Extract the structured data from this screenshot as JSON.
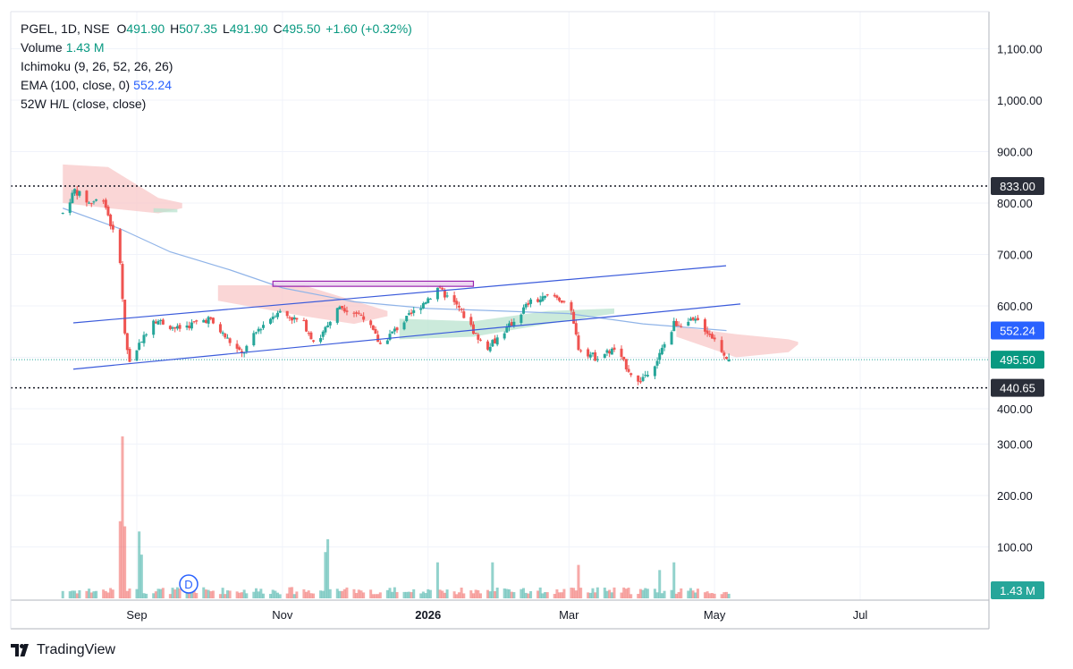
{
  "legend": {
    "symbol": "PGEL, 1D, NSE",
    "open_label": "O",
    "open": "491.90",
    "high_label": "H",
    "high": "507.35",
    "low_label": "L",
    "low": "491.90",
    "close_label": "C",
    "close": "495.50",
    "change": "+1.60 (+0.32%)",
    "volume_label": "Volume",
    "volume": "1.43 M",
    "ichimoku": "Ichimoku (9, 26, 52, 26, 26)",
    "ema_label": "EMA (100, close, 0)",
    "ema_value": "552.24",
    "hl52": "52W H/L (close, close)"
  },
  "brand": {
    "name": "TradingView",
    "icon": "tradingview-logo-icon"
  },
  "marker": {
    "letter": "D",
    "icon": "dividend-marker-icon"
  },
  "colors": {
    "up": "#26a69a",
    "down": "#ef5350",
    "ema": "#2962ff",
    "cloud_bear": "#f8c8c8",
    "cloud_bull": "#b9e3cf",
    "channel": "#3b5bdb",
    "zone": "#9c27b0"
  },
  "chart_data": {
    "type": "candlestick",
    "symbol": "PGEL",
    "interval": "1D",
    "exchange": "NSE",
    "y_axis_ticks": [
      "1,100.00",
      "1,000.00",
      "900.00",
      "800.00",
      "700.00",
      "600.00",
      "400.00",
      "300.00",
      "200.00",
      "100.00"
    ],
    "x_axis_ticks": [
      {
        "label": "Sep",
        "date": "2025-09-01"
      },
      {
        "label": "Nov",
        "date": "2025-11-01"
      },
      {
        "label": "2026",
        "date": "2026-01-01"
      },
      {
        "label": "Mar",
        "date": "2026-03-01"
      },
      {
        "label": "May",
        "date": "2026-05-01"
      },
      {
        "label": "Jul",
        "date": "2026-07-01"
      }
    ],
    "price_labels": [
      {
        "value": "833.00",
        "price": 833,
        "style": "dark"
      },
      {
        "value": "552.24",
        "price": 552.24,
        "style": "ema"
      },
      {
        "value": "495.50",
        "price": 495.5,
        "style": "last"
      },
      {
        "value": "440.65",
        "price": 440.65,
        "style": "dark"
      }
    ],
    "volume_label": "1.43 M",
    "hlines": [
      {
        "name": "52w-high",
        "price": 833
      },
      {
        "name": "52w-low",
        "price": 440.65
      },
      {
        "name": "last-price",
        "price": 495.5
      }
    ],
    "channel_lines": [
      {
        "name": "channel-upper",
        "from": {
          "date": "2025-08-25",
          "price": 567
        },
        "to": {
          "date": "2026-05-01",
          "price": 678
        }
      },
      {
        "name": "channel-lower",
        "from": {
          "date": "2025-08-25",
          "price": 477
        },
        "to": {
          "date": "2026-05-01",
          "price": 588
        }
      }
    ],
    "zone": {
      "from": {
        "date": "2025-10-28",
        "price": 648
      },
      "to": {
        "date": "2026-01-20",
        "price": 638
      }
    },
    "ema_line": [
      {
        "date": "2025-08-01",
        "price": 790
      },
      {
        "date": "2025-08-25",
        "price": 750
      },
      {
        "date": "2025-09-15",
        "price": 705
      },
      {
        "date": "2025-10-10",
        "price": 670
      },
      {
        "date": "2025-11-01",
        "price": 635
      },
      {
        "date": "2025-12-01",
        "price": 608
      },
      {
        "date": "2026-01-01",
        "price": 595
      },
      {
        "date": "2026-02-01",
        "price": 590
      },
      {
        "date": "2026-03-01",
        "price": 585
      },
      {
        "date": "2026-04-01",
        "price": 565
      },
      {
        "date": "2026-05-06",
        "price": 552
      }
    ],
    "cloud_bear": [
      {
        "date": "2025-08-01",
        "upper": 875,
        "lower": 800
      },
      {
        "date": "2025-08-20",
        "upper": 870,
        "lower": 790
      },
      {
        "date": "2025-09-10",
        "upper": 810,
        "lower": 780
      },
      {
        "date": "2025-09-20",
        "upper": 800,
        "lower": 790
      }
    ],
    "cloud_bear2": [
      {
        "date": "2025-10-05",
        "upper": 640,
        "lower": 610
      },
      {
        "date": "2025-11-10",
        "upper": 640,
        "lower": 580
      },
      {
        "date": "2025-12-01",
        "upper": 610,
        "lower": 565
      },
      {
        "date": "2025-12-15",
        "upper": 590,
        "lower": 580
      }
    ],
    "cloud_bull": [
      {
        "date": "2025-12-20",
        "upper": 575,
        "lower": 535
      },
      {
        "date": "2026-01-20",
        "upper": 570,
        "lower": 540
      },
      {
        "date": "2026-02-20",
        "upper": 590,
        "lower": 565
      },
      {
        "date": "2026-03-20",
        "upper": 595,
        "lower": 585
      }
    ],
    "cloud_bear3": [
      {
        "date": "2026-04-15",
        "upper": 560,
        "lower": 540
      },
      {
        "date": "2026-05-10",
        "upper": 545,
        "lower": 500
      },
      {
        "date": "2026-06-01",
        "upper": 535,
        "lower": 510
      },
      {
        "date": "2026-06-05",
        "upper": 530,
        "lower": 525
      }
    ],
    "cloud_bull2": [
      {
        "date": "2025-09-08",
        "upper": 790,
        "lower": 782
      },
      {
        "date": "2025-09-18",
        "upper": 788,
        "lower": 782
      }
    ],
    "price_path": [
      {
        "date": "2025-08-01",
        "price": 780
      },
      {
        "date": "2025-08-06",
        "price": 825
      },
      {
        "date": "2025-08-12",
        "price": 800
      },
      {
        "date": "2025-08-18",
        "price": 810
      },
      {
        "date": "2025-08-21",
        "price": 760
      },
      {
        "date": "2025-08-25",
        "price": 690
      },
      {
        "date": "2025-08-27",
        "price": 540
      },
      {
        "date": "2025-08-29",
        "price": 490
      },
      {
        "date": "2025-09-03",
        "price": 535
      },
      {
        "date": "2025-09-08",
        "price": 575
      },
      {
        "date": "2025-09-18",
        "price": 555
      },
      {
        "date": "2025-10-01",
        "price": 575
      },
      {
        "date": "2025-10-15",
        "price": 505
      },
      {
        "date": "2025-10-22",
        "price": 555
      },
      {
        "date": "2025-10-30",
        "price": 590
      },
      {
        "date": "2025-11-10",
        "price": 565
      },
      {
        "date": "2025-11-15",
        "price": 525
      },
      {
        "date": "2025-11-25",
        "price": 600
      },
      {
        "date": "2025-12-05",
        "price": 580
      },
      {
        "date": "2025-12-12",
        "price": 525
      },
      {
        "date": "2025-12-22",
        "price": 570
      },
      {
        "date": "2026-01-01",
        "price": 615
      },
      {
        "date": "2026-01-05",
        "price": 635
      },
      {
        "date": "2026-01-14",
        "price": 595
      },
      {
        "date": "2026-01-25",
        "price": 515
      },
      {
        "date": "2026-02-04",
        "price": 560
      },
      {
        "date": "2026-02-12",
        "price": 605
      },
      {
        "date": "2026-02-22",
        "price": 620
      },
      {
        "date": "2026-03-01",
        "price": 605
      },
      {
        "date": "2026-03-05",
        "price": 520
      },
      {
        "date": "2026-03-12",
        "price": 500
      },
      {
        "date": "2026-03-20",
        "price": 515
      },
      {
        "date": "2026-03-30",
        "price": 450
      },
      {
        "date": "2026-04-07",
        "price": 495
      },
      {
        "date": "2026-04-14",
        "price": 565
      },
      {
        "date": "2026-04-24",
        "price": 570
      },
      {
        "date": "2026-04-30",
        "price": 540
      },
      {
        "date": "2026-05-07",
        "price": 495.5
      }
    ],
    "volume_spikes": [
      {
        "date": "2025-08-25",
        "volume": 150
      },
      {
        "date": "2025-08-26",
        "volume": 315
      },
      {
        "date": "2025-08-27",
        "volume": 140
      },
      {
        "date": "2025-08-30",
        "volume": 75
      },
      {
        "date": "2025-09-02",
        "volume": 130
      },
      {
        "date": "2025-09-03",
        "volume": 85
      },
      {
        "date": "2025-10-18",
        "volume": 135
      },
      {
        "date": "2025-11-20",
        "volume": 115
      },
      {
        "date": "2025-11-19",
        "volume": 90
      },
      {
        "date": "2026-01-05",
        "volume": 70
      },
      {
        "date": "2026-01-28",
        "volume": 70
      },
      {
        "date": "2026-02-21",
        "volume": 68
      },
      {
        "date": "2026-03-05",
        "volume": 65
      },
      {
        "date": "2026-04-14",
        "volume": 70
      },
      {
        "date": "2026-04-08",
        "volume": 55
      }
    ]
  }
}
